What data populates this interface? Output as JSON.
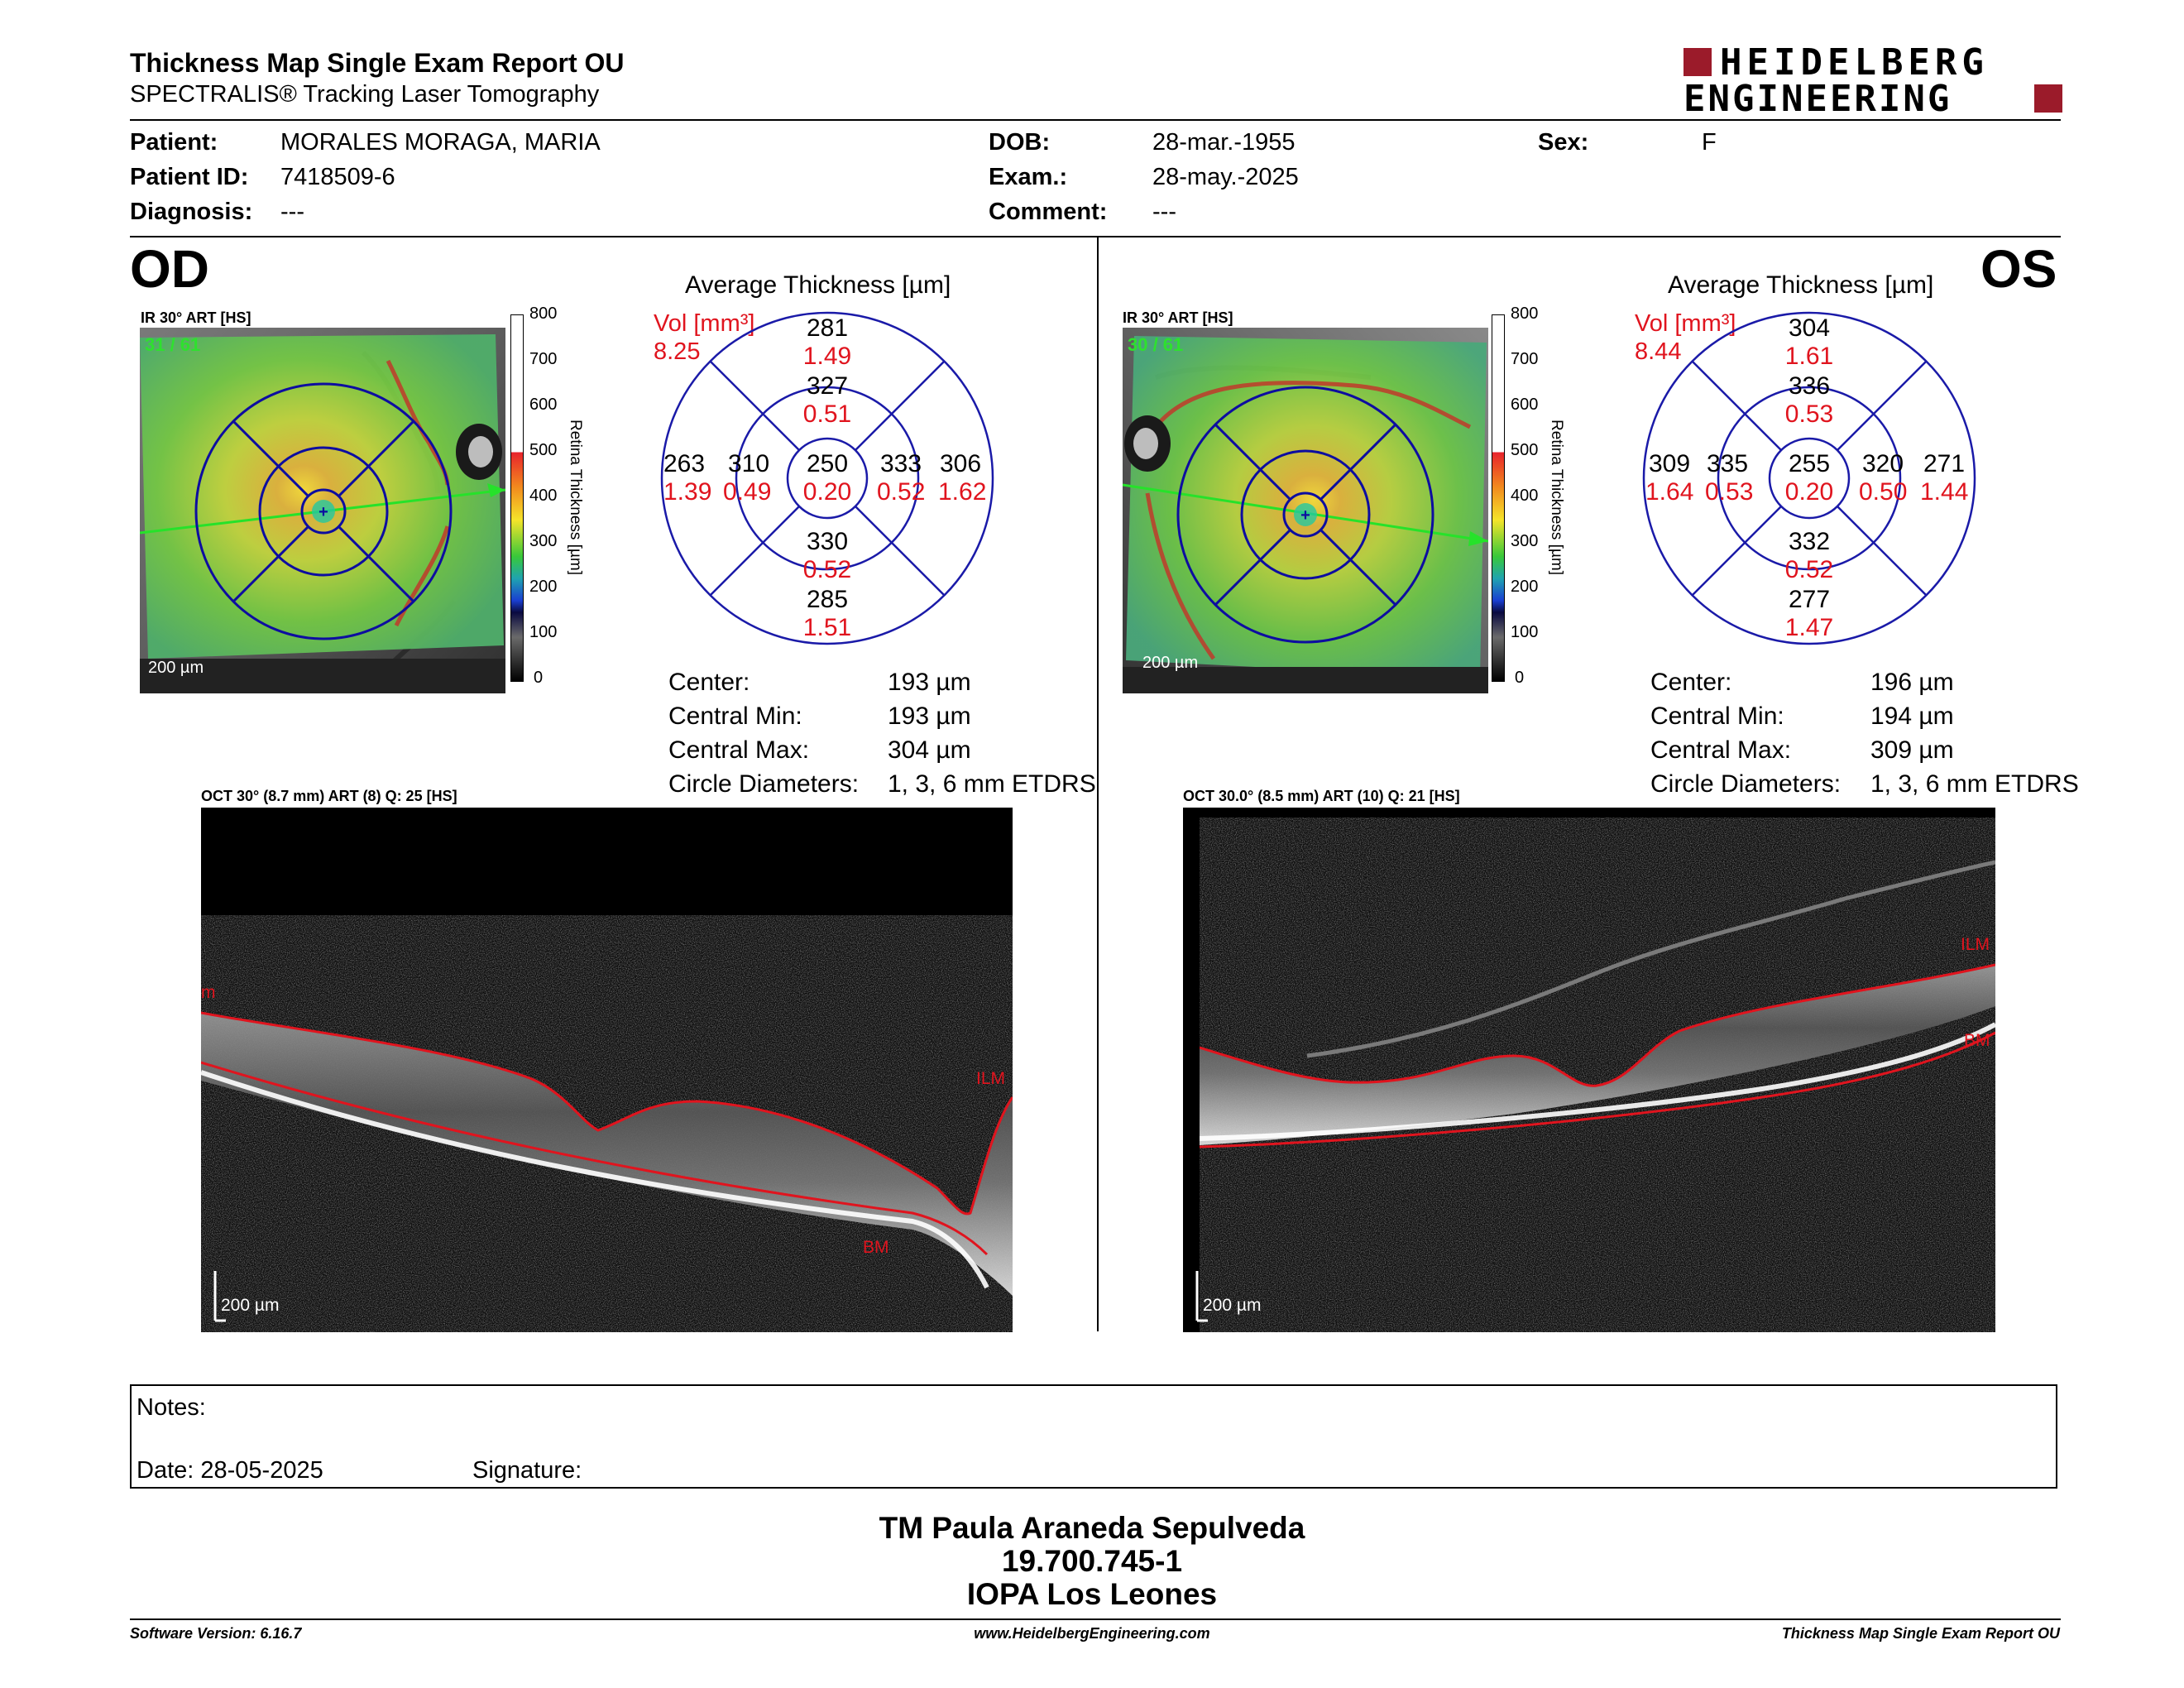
{
  "header": {
    "title": "Thickness Map Single Exam Report OU",
    "subtitle": "SPECTRALIS® Tracking Laser Tomography",
    "brand_line1": "HEIDELBERG",
    "brand_line2": "ENGINEERING"
  },
  "patient": {
    "patient_label": "Patient:",
    "patient_value": "MORALES MORAGA, MARIA",
    "id_label": "Patient ID:",
    "id_value": "7418509-6",
    "diagnosis_label": "Diagnosis:",
    "diagnosis_value": "---",
    "dob_label": "DOB:",
    "dob_value": "28-mar.-1955",
    "exam_label": "Exam.:",
    "exam_value": "28-may.-2025",
    "comment_label": "Comment:",
    "comment_value": "---",
    "sex_label": "Sex:",
    "sex_value": "F"
  },
  "od": {
    "eye": "OD",
    "ir_label": "IR 30° ART [HS]",
    "ir_count": "31 / 61",
    "scale_text": "200 µm",
    "avg_title": "Average Thickness [µm]",
    "vol_label": "Vol [mm³]",
    "vol_value": "8.25",
    "grid": {
      "center": {
        "t": "250",
        "v": "0.20"
      },
      "inner_sup": {
        "t": "327",
        "v": "0.51"
      },
      "inner_inf": {
        "t": "330",
        "v": "0.52"
      },
      "inner_temp": {
        "t": "310",
        "v": "0.49"
      },
      "inner_nas": {
        "t": "333",
        "v": "0.52"
      },
      "outer_sup": {
        "t": "281",
        "v": "1.49"
      },
      "outer_inf": {
        "t": "285",
        "v": "1.51"
      },
      "outer_temp": {
        "t": "263",
        "v": "1.39"
      },
      "outer_nas": {
        "t": "306",
        "v": "1.62"
      }
    },
    "stats": {
      "center_label": "Center:",
      "center_value": "193 µm",
      "min_label": "Central Min:",
      "min_value": "193 µm",
      "max_label": "Central Max:",
      "max_value": "304 µm",
      "diam_label": "Circle Diameters:",
      "diam_value": "1, 3, 6 mm ETDRS"
    },
    "oct_label": "OCT 30° (8.7 mm) ART (8) Q: 25 [HS]",
    "oct_scale": "200 µm",
    "layer_top": "ILM",
    "layer_top_left": "m",
    "layer_bottom": "BM"
  },
  "os": {
    "eye": "OS",
    "ir_label": "IR 30° ART [HS]",
    "ir_count": "30 / 61",
    "scale_text": "200 µm",
    "avg_title": "Average Thickness [µm]",
    "vol_label": "Vol [mm³]",
    "vol_value": "8.44",
    "grid": {
      "center": {
        "t": "255",
        "v": "0.20"
      },
      "inner_sup": {
        "t": "336",
        "v": "0.53"
      },
      "inner_inf": {
        "t": "332",
        "v": "0.52"
      },
      "inner_temp": {
        "t": "335",
        "v": "0.53"
      },
      "inner_nas": {
        "t": "320",
        "v": "0.50"
      },
      "outer_sup": {
        "t": "304",
        "v": "1.61"
      },
      "outer_inf": {
        "t": "277",
        "v": "1.47"
      },
      "outer_temp": {
        "t": "309",
        "v": "1.64"
      },
      "outer_nas": {
        "t": "271",
        "v": "1.44"
      }
    },
    "stats": {
      "center_label": "Center:",
      "center_value": "196 µm",
      "min_label": "Central Min:",
      "min_value": "194 µm",
      "max_label": "Central Max:",
      "max_value": "309 µm",
      "diam_label": "Circle Diameters:",
      "diam_value": "1, 3, 6 mm ETDRS"
    },
    "oct_label": "OCT 30.0° (8.5 mm) ART (10) Q: 21 [HS]",
    "oct_scale": "200 µm",
    "layer_top": "ILM",
    "layer_bottom": "BM"
  },
  "colorbar": {
    "ticks": [
      "800",
      "700",
      "600",
      "500",
      "400",
      "300",
      "200",
      "100",
      "0"
    ],
    "axis_label": "Retina Thickness [µm]"
  },
  "notes": {
    "notes_label": "Notes:",
    "date_label": "Date: 28-05-2025",
    "signature_label": "Signature:"
  },
  "signature": {
    "name": "TM Paula Araneda Sepulveda",
    "id": "19.700.745-1",
    "org": "IOPA Los Leones"
  },
  "footer": {
    "software": "Software Version: 6.16.7",
    "url": "www.HeidelbergEngineering.com",
    "report": "Thickness Map Single Exam Report OU"
  },
  "colors": {
    "brand_red": "#9b1b2a",
    "grid_blue": "#1a1aa8",
    "volume_red": "#e0141e",
    "layer_red": "#e0141e"
  }
}
